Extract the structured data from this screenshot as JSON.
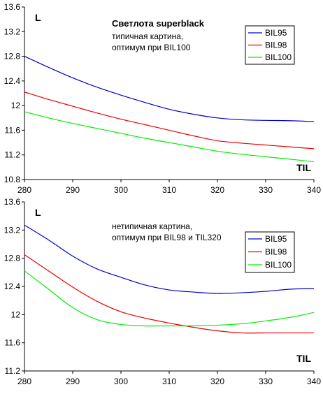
{
  "chart_data": [
    {
      "type": "line",
      "ylabel": "L",
      "xlabel": "TIL",
      "title": "Светлота superblack",
      "annotation_lines": [
        "типичная картина,",
        "оптимум при BIL100"
      ],
      "xlim": [
        280,
        340
      ],
      "ylim": [
        10.8,
        13.6
      ],
      "x_ticks": [
        280,
        290,
        300,
        310,
        320,
        330,
        340
      ],
      "y_ticks": [
        10.8,
        11.2,
        11.6,
        12,
        12.4,
        12.8,
        13.2,
        13.6
      ],
      "y_tick_labels": [
        "10.8",
        "11.2",
        "11.6",
        "12",
        "12.4",
        "12.8",
        "13.2",
        "13.6"
      ],
      "legend_position": "top-right",
      "grid": false,
      "series": [
        {
          "name": "BIL95",
          "color": "#0000cc",
          "x": [
            280,
            285,
            290,
            295,
            300,
            305,
            310,
            315,
            320,
            325,
            330,
            335,
            340
          ],
          "y": [
            12.8,
            12.62,
            12.45,
            12.3,
            12.17,
            12.05,
            11.94,
            11.86,
            11.8,
            11.77,
            11.76,
            11.755,
            11.74
          ]
        },
        {
          "name": "BIL98",
          "color": "#ee0000",
          "x": [
            280,
            285,
            290,
            295,
            300,
            305,
            310,
            315,
            320,
            325,
            330,
            335,
            340
          ],
          "y": [
            12.22,
            12.1,
            11.99,
            11.88,
            11.78,
            11.69,
            11.6,
            11.51,
            11.43,
            11.39,
            11.36,
            11.33,
            11.3
          ]
        },
        {
          "name": "BIL100",
          "color": "#00ee00",
          "x": [
            280,
            285,
            290,
            295,
            300,
            305,
            310,
            315,
            320,
            325,
            330,
            335,
            340
          ],
          "y": [
            11.9,
            11.8,
            11.71,
            11.63,
            11.55,
            11.47,
            11.4,
            11.33,
            11.26,
            11.21,
            11.17,
            11.13,
            11.09
          ]
        }
      ]
    },
    {
      "type": "line",
      "ylabel": "L",
      "xlabel": "TIL",
      "title": "",
      "annotation_lines": [
        "нетипичная картина,",
        "оптимум при BIL98 и TIL320"
      ],
      "xlim": [
        280,
        340
      ],
      "ylim": [
        11.2,
        13.6
      ],
      "x_ticks": [
        280,
        290,
        300,
        310,
        320,
        330,
        340
      ],
      "y_ticks": [
        11.2,
        11.6,
        12,
        12.4,
        12.8,
        13.2,
        13.6
      ],
      "y_tick_labels": [
        "11.2",
        "11.6",
        "12",
        "12.4",
        "12.8",
        "13.2",
        "13.6"
      ],
      "legend_position": "right",
      "grid": false,
      "series": [
        {
          "name": "BIL95",
          "color": "#0000cc",
          "x": [
            280,
            285,
            290,
            295,
            300,
            305,
            310,
            315,
            320,
            325,
            330,
            335,
            340
          ],
          "y": [
            13.27,
            13.06,
            12.83,
            12.65,
            12.53,
            12.42,
            12.35,
            12.32,
            12.3,
            12.31,
            12.33,
            12.36,
            12.37
          ]
        },
        {
          "name": "BIL98",
          "color": "#ee0000",
          "x": [
            280,
            285,
            290,
            295,
            300,
            305,
            310,
            315,
            320,
            325,
            330,
            335,
            340
          ],
          "y": [
            12.85,
            12.62,
            12.39,
            12.19,
            12.04,
            11.95,
            11.88,
            11.82,
            11.77,
            11.74,
            11.74,
            11.74,
            11.74
          ]
        },
        {
          "name": "BIL100",
          "color": "#00ee00",
          "x": [
            280,
            285,
            290,
            295,
            300,
            305,
            310,
            315,
            320,
            325,
            330,
            335,
            340
          ],
          "y": [
            12.62,
            12.36,
            12.1,
            11.93,
            11.86,
            11.84,
            11.84,
            11.84,
            11.85,
            11.87,
            11.91,
            11.96,
            12.03
          ]
        }
      ]
    }
  ]
}
